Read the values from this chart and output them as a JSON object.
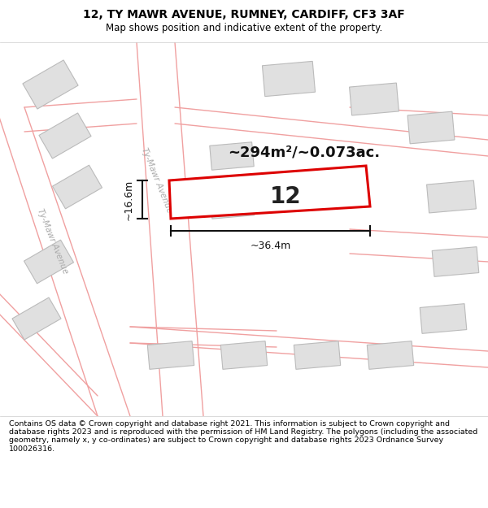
{
  "title_line1": "12, TY MAWR AVENUE, RUMNEY, CARDIFF, CF3 3AF",
  "title_line2": "Map shows position and indicative extent of the property.",
  "footer_text": "Contains OS data © Crown copyright and database right 2021. This information is subject to Crown copyright and database rights 2023 and is reproduced with the permission of HM Land Registry. The polygons (including the associated geometry, namely x, y co-ordinates) are subject to Crown copyright and database rights 2023 Ordnance Survey 100026316.",
  "area_label": "~294m²/~0.073ac.",
  "width_label": "~36.4m",
  "height_label": "~16.6m",
  "plot_number": "12",
  "map_bg": "#ffffff",
  "road_line_color": "#f0a0a0",
  "plot_fill": "#ffffff",
  "plot_edge": "#dd0000",
  "building_fill": "#e0e0e0",
  "building_edge": "#bbbbbb",
  "street_label_color": "#aaaaaa",
  "dim_color": "#111111",
  "title_fontsize": 10,
  "subtitle_fontsize": 8.5,
  "footer_fontsize": 6.8
}
